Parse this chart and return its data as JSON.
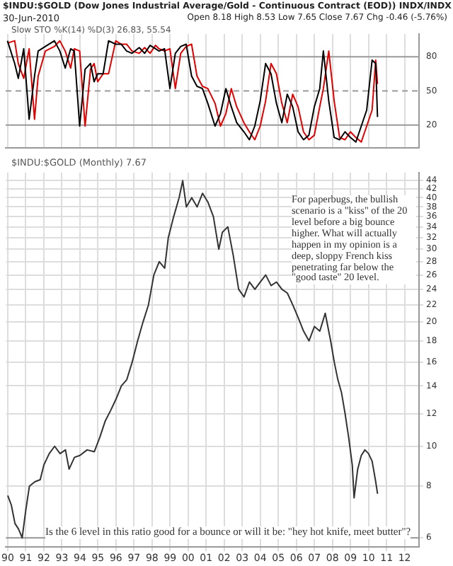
{
  "chart_data": [
    {
      "type": "line",
      "title": "$INDU:$GOLD (Dow Jones Industrial Average/Gold - Continuous Contract (EOD)) INDX/INDX",
      "subtitle": "30-Jun-2010",
      "annotations": [
        "Open 8.18 High 8.53 Low 7.65 Close 7.67 Chg -0.46 (-5.76%)",
        "Slow STO %K(14) %D(3) 26.83, 55.54"
      ],
      "x": [
        1990.0,
        1990.4,
        1990.6,
        1990.9,
        1991.2,
        1991.5,
        1991.7,
        1992.1,
        1992.6,
        1992.9,
        1993.2,
        1993.5,
        1993.7,
        1994.0,
        1994.3,
        1994.6,
        1994.8,
        1995.0,
        1995.3,
        1995.6,
        1996.0,
        1996.3,
        1996.6,
        1996.9,
        1997.3,
        1997.6,
        1997.9,
        1998.2,
        1998.4,
        1998.7,
        1999.0,
        1999.3,
        1999.6,
        1999.9,
        2000.2,
        2000.5,
        2000.8,
        2001.1,
        2001.5,
        2001.8,
        2002.1,
        2002.4,
        2002.7,
        2003.1,
        2003.4,
        2003.7,
        2004.0,
        2004.3,
        2004.6,
        2004.9,
        2005.2,
        2005.5,
        2005.8,
        2006.1,
        2006.4,
        2006.7,
        2007.0,
        2007.3,
        2007.5,
        2007.8,
        2008.1,
        2008.4,
        2008.7,
        2009.0,
        2009.3,
        2009.6,
        2009.9,
        2010.2,
        2010.4,
        2010.5
      ],
      "series": [
        {
          "color": "#000000",
          "values": [
            94,
            74,
            61,
            87,
            25,
            63,
            85,
            89,
            94,
            85,
            70,
            87,
            85,
            19,
            69,
            74,
            58,
            65,
            65,
            94,
            91,
            91,
            85,
            83,
            88,
            83,
            90,
            87,
            85,
            87,
            52,
            83,
            89,
            91,
            63,
            54,
            52,
            39,
            19,
            30,
            52,
            36,
            22,
            14,
            7,
            19,
            41,
            74,
            65,
            39,
            22,
            47,
            36,
            14,
            7,
            11,
            36,
            52,
            85,
            41,
            9,
            7,
            14,
            9,
            5,
            19,
            33,
            77,
            74,
            27
          ]
        },
        {
          "color": "#e00000",
          "values": [
            92,
            94,
            74,
            61,
            87,
            25,
            63,
            85,
            89,
            94,
            85,
            70,
            87,
            85,
            19,
            69,
            74,
            58,
            65,
            65,
            94,
            91,
            91,
            85,
            83,
            88,
            83,
            90,
            87,
            85,
            87,
            52,
            83,
            89,
            91,
            63,
            54,
            52,
            39,
            19,
            30,
            52,
            36,
            22,
            14,
            7,
            19,
            41,
            74,
            65,
            39,
            22,
            47,
            36,
            14,
            7,
            11,
            36,
            52,
            85,
            41,
            9,
            7,
            14,
            9,
            5,
            19,
            33,
            77,
            56
          ]
        }
      ],
      "xlim": [
        1989.9,
        2012.8
      ],
      "xticks": [
        1990,
        1991,
        1992,
        1993,
        1994,
        1995,
        1996,
        1997,
        1998,
        1999,
        2000,
        2001,
        2002,
        2003,
        2004,
        2005,
        2006,
        2007,
        2008,
        2009,
        2010,
        2011,
        2012
      ],
      "ylim": [
        0,
        100
      ],
      "yticks": [
        20,
        50,
        80
      ],
      "ref_lines": [
        {
          "axis": "y",
          "value": 80,
          "color": "#999999"
        },
        {
          "axis": "y",
          "value": 50,
          "color": "#999999",
          "line_style": "dashed"
        },
        {
          "axis": "y",
          "value": 20,
          "color": "#999999"
        }
      ],
      "grid": "x",
      "tick_labels": "y",
      "marker": "none",
      "line_style": "solid"
    },
    {
      "type": "line",
      "title": "$INDU:$GOLD (Monthly) 7.67",
      "annotations": [
        "For paperbugs, the bullish scenario is a \"kiss\" of the 20 level before a big bounce higher.  What will actually happen in my opinion is a deep, sloppy French kiss penetrating far below the \"good taste\" 20 level.",
        "Is the 6 level in this ratio good for a bounce or will it be: \"hey hot knife, meet butter\"?"
      ],
      "x": [
        1990.0,
        1990.2,
        1990.4,
        1990.6,
        1990.8,
        1991.0,
        1991.2,
        1991.5,
        1991.8,
        1992.0,
        1992.3,
        1992.6,
        1992.9,
        1993.2,
        1993.4,
        1993.7,
        1994.0,
        1994.4,
        1994.8,
        1995.1,
        1995.4,
        1995.7,
        1996.0,
        1996.3,
        1996.6,
        1996.9,
        1997.2,
        1997.5,
        1997.8,
        1998.1,
        1998.4,
        1998.7,
        1998.9,
        1999.2,
        1999.5,
        1999.7,
        1999.9,
        2000.2,
        2000.5,
        2000.8,
        2001.1,
        2001.4,
        2001.7,
        2001.9,
        2002.2,
        2002.5,
        2002.8,
        2003.1,
        2003.4,
        2003.7,
        2004.0,
        2004.3,
        2004.6,
        2004.9,
        2005.2,
        2005.5,
        2005.8,
        2006.1,
        2006.4,
        2006.7,
        2007.0,
        2007.3,
        2007.6,
        2007.9,
        2008.1,
        2008.3,
        2008.5,
        2008.7,
        2008.9,
        2009.1,
        2009.2,
        2009.4,
        2009.6,
        2009.8,
        2010.0,
        2010.2,
        2010.4,
        2010.5
      ],
      "series": [
        {
          "color": "#333333",
          "values": [
            7.6,
            7.2,
            6.5,
            6.3,
            6.0,
            7.0,
            8.0,
            8.2,
            8.3,
            9.0,
            9.6,
            10.0,
            9.6,
            9.8,
            8.8,
            9.4,
            9.5,
            9.8,
            9.7,
            10.5,
            11.5,
            12.2,
            13.0,
            14.0,
            14.5,
            16.0,
            18.0,
            20.0,
            22.0,
            26.0,
            28.0,
            27.0,
            32.0,
            36.0,
            40.0,
            44.0,
            38.0,
            40.0,
            38.0,
            41.0,
            39.0,
            36.0,
            30.0,
            33.0,
            34.0,
            29.0,
            24.0,
            23.0,
            25.0,
            24.0,
            25.0,
            26.0,
            24.5,
            25.0,
            24.0,
            23.5,
            22.0,
            20.5,
            19.0,
            18.0,
            19.5,
            19.0,
            21.0,
            18.0,
            16.0,
            14.5,
            13.5,
            12.0,
            10.5,
            9.0,
            7.5,
            8.8,
            9.5,
            9.8,
            9.6,
            9.2,
            8.2,
            7.67
          ]
        }
      ],
      "xlim": [
        1989.9,
        2012.8
      ],
      "xticks": [
        {
          "value": 1990,
          "label": "90"
        },
        {
          "value": 1991,
          "label": "91"
        },
        {
          "value": 1992,
          "label": "92"
        },
        {
          "value": 1993,
          "label": "93"
        },
        {
          "value": 1994,
          "label": "94"
        },
        {
          "value": 1995,
          "label": "95"
        },
        {
          "value": 1996,
          "label": "96"
        },
        {
          "value": 1997,
          "label": "97"
        },
        {
          "value": 1998,
          "label": "98"
        },
        {
          "value": 1999,
          "label": "99"
        },
        {
          "value": 2000,
          "label": "00"
        },
        {
          "value": 2001,
          "label": "01"
        },
        {
          "value": 2002,
          "label": "02"
        },
        {
          "value": 2003,
          "label": "03"
        },
        {
          "value": 2004,
          "label": "04"
        },
        {
          "value": 2005,
          "label": "05"
        },
        {
          "value": 2006,
          "label": "06"
        },
        {
          "value": 2007,
          "label": "07"
        },
        {
          "value": 2008,
          "label": "08"
        },
        {
          "value": 2009,
          "label": "09"
        },
        {
          "value": 2010,
          "label": "10"
        },
        {
          "value": 2011,
          "label": "11"
        },
        {
          "value": 2012,
          "label": "12"
        }
      ],
      "ylim": [
        5.7,
        46
      ],
      "yticks": [
        6,
        8,
        10,
        12,
        14,
        16,
        18,
        20,
        22,
        24,
        26,
        28,
        30,
        32,
        34,
        36,
        38,
        40,
        42,
        44
      ],
      "log": "y",
      "ref_lines": [
        {
          "axis": "y",
          "value": 6,
          "color": "#999999"
        }
      ],
      "grid": true,
      "marker": "none",
      "line_style": "solid"
    }
  ]
}
